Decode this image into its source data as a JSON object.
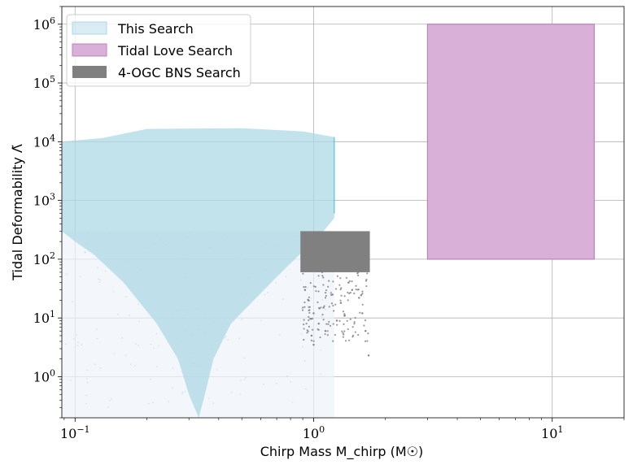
{
  "chart_data": {
    "type": "scatter",
    "x_scale": "log",
    "y_scale": "log",
    "xlim": [
      0.088,
      20
    ],
    "ylim": [
      0.2,
      2000000
    ],
    "xlabel": "Chirp Mass M_chirp (M☉)",
    "ylabel": "Tidal Deformability Λ̃",
    "x_ticks": [
      {
        "value": 0.1,
        "base": "10",
        "exp": "−1"
      },
      {
        "value": 1,
        "base": "10",
        "exp": "0"
      },
      {
        "value": 10,
        "base": "10",
        "exp": "1"
      }
    ],
    "y_ticks": [
      {
        "value": 1,
        "base": "10",
        "exp": "0"
      },
      {
        "value": 10,
        "base": "10",
        "exp": "1"
      },
      {
        "value": 100,
        "base": "10",
        "exp": "2"
      },
      {
        "value": 1000,
        "base": "10",
        "exp": "3"
      },
      {
        "value": 10000,
        "base": "10",
        "exp": "4"
      },
      {
        "value": 100000,
        "base": "10",
        "exp": "5"
      },
      {
        "value": 1000000,
        "base": "10",
        "exp": "6"
      }
    ],
    "grid": true,
    "legend_position": "top-left",
    "series": [
      {
        "name": "This Search",
        "color": "#add8e6",
        "kind": "scatter-region",
        "outline": [
          [
            0.088,
            10000
          ],
          [
            0.13,
            11500
          ],
          [
            0.2,
            16500
          ],
          [
            0.5,
            17000
          ],
          [
            0.9,
            15000
          ],
          [
            1.22,
            12000
          ],
          [
            1.22,
            500
          ],
          [
            1.1,
            300
          ],
          [
            0.7,
            50
          ],
          [
            0.45,
            8
          ],
          [
            0.38,
            2
          ],
          [
            0.35,
            0.5
          ],
          [
            0.33,
            0.2
          ],
          [
            0.3,
            0.5
          ],
          [
            0.27,
            2
          ],
          [
            0.22,
            8
          ],
          [
            0.16,
            40
          ],
          [
            0.12,
            120
          ],
          [
            0.1,
            200
          ],
          [
            0.088,
            300
          ]
        ]
      },
      {
        "name": "Tidal Love Search",
        "color": "#d8b0d8",
        "edge_color": "#c080c0",
        "kind": "rectangle",
        "x_range": [
          3,
          15
        ],
        "y_range": [
          100,
          1000000
        ]
      },
      {
        "name": "4-OGC BNS Search",
        "color": "#808080",
        "kind": "scatter-region",
        "core": {
          "x_range": [
            0.88,
            1.72
          ],
          "y_range": [
            60,
            300
          ]
        },
        "tail_points": [
          [
            0.95,
            20
          ],
          [
            1.0,
            12
          ],
          [
            1.05,
            8
          ],
          [
            0.98,
            5
          ],
          [
            1.1,
            15
          ],
          [
            1.2,
            25
          ],
          [
            1.3,
            18
          ],
          [
            1.45,
            30
          ],
          [
            1.6,
            12
          ],
          [
            1.65,
            6
          ],
          [
            1.0,
            3.5
          ],
          [
            1.4,
            40
          ],
          [
            1.55,
            22
          ],
          [
            1.25,
            9
          ],
          [
            1.12,
            6
          ],
          [
            1.7,
            2.3
          ],
          [
            0.92,
            30
          ],
          [
            1.35,
            11
          ]
        ]
      }
    ]
  }
}
